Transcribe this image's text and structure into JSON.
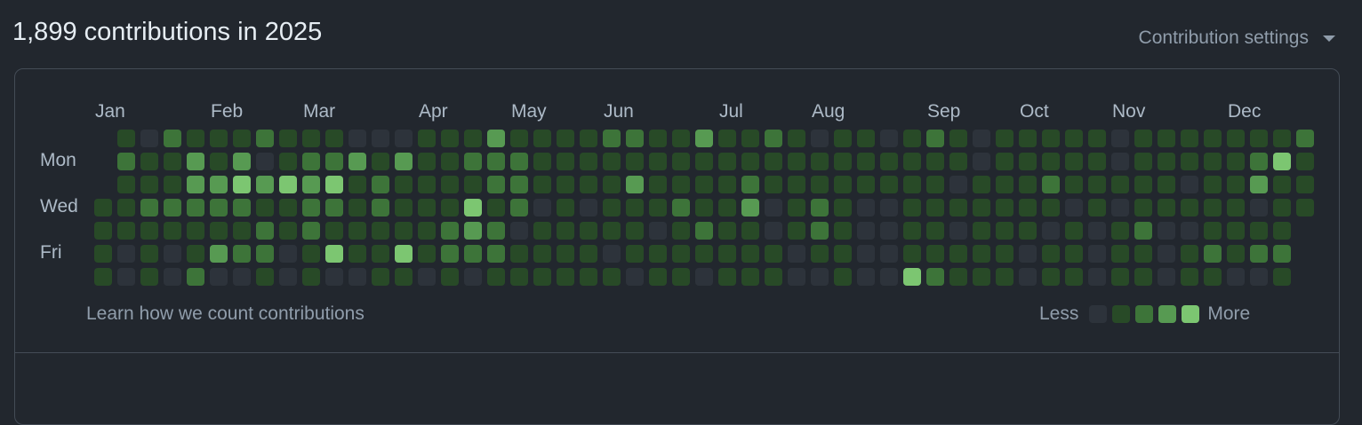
{
  "header": {
    "title": "1,899 contributions in 2025",
    "settings_label": "Contribution settings",
    "settings_icon": "caret-down-icon"
  },
  "footer": {
    "learn_link": "Learn how we count contributions",
    "legend_less": "Less",
    "legend_more": "More"
  },
  "colors": {
    "background": "#22272e",
    "levels": [
      "#2d333b",
      "#284a27",
      "#3d7439",
      "#579a52",
      "#7cc671"
    ]
  },
  "chart_data": {
    "type": "heatmap",
    "year": 2025,
    "months": [
      {
        "label": "Jan",
        "week": 0
      },
      {
        "label": "Feb",
        "week": 5
      },
      {
        "label": "Mar",
        "week": 9
      },
      {
        "label": "Apr",
        "week": 14
      },
      {
        "label": "May",
        "week": 18
      },
      {
        "label": "Jun",
        "week": 22
      },
      {
        "label": "Jul",
        "week": 27
      },
      {
        "label": "Aug",
        "week": 31
      },
      {
        "label": "Sep",
        "week": 36
      },
      {
        "label": "Oct",
        "week": 40
      },
      {
        "label": "Nov",
        "week": 44
      },
      {
        "label": "Dec",
        "week": 49
      }
    ],
    "day_labels": [
      {
        "label": "Mon",
        "row": 1
      },
      {
        "label": "Wed",
        "row": 3
      },
      {
        "label": "Fri",
        "row": 5
      }
    ],
    "levels_by_weekday": [
      [
        null,
        1,
        0,
        2,
        1,
        1,
        1,
        2,
        1,
        1,
        1,
        0,
        0,
        0,
        1,
        1,
        1,
        3,
        1,
        1,
        1,
        1,
        2,
        2,
        1,
        1,
        3,
        1,
        1,
        2,
        1,
        0,
        1,
        1,
        0,
        1,
        2,
        1,
        0,
        1,
        1,
        1,
        1,
        1,
        0,
        1,
        1,
        1,
        1,
        1,
        1,
        1,
        2
      ],
      [
        null,
        2,
        1,
        1,
        3,
        1,
        3,
        0,
        1,
        2,
        2,
        3,
        1,
        3,
        1,
        1,
        2,
        2,
        2,
        1,
        1,
        1,
        1,
        1,
        1,
        1,
        1,
        1,
        1,
        1,
        1,
        1,
        1,
        1,
        1,
        1,
        1,
        1,
        0,
        1,
        1,
        1,
        1,
        1,
        0,
        1,
        1,
        1,
        1,
        1,
        2,
        4,
        1
      ],
      [
        null,
        1,
        1,
        1,
        3,
        3,
        4,
        3,
        4,
        3,
        4,
        1,
        2,
        1,
        1,
        1,
        1,
        2,
        2,
        1,
        1,
        1,
        1,
        3,
        1,
        1,
        1,
        1,
        2,
        1,
        1,
        1,
        1,
        1,
        1,
        1,
        1,
        0,
        1,
        1,
        1,
        2,
        1,
        1,
        1,
        1,
        1,
        0,
        1,
        1,
        3,
        1,
        1
      ],
      [
        1,
        1,
        2,
        2,
        2,
        2,
        2,
        1,
        1,
        2,
        2,
        1,
        2,
        1,
        1,
        1,
        4,
        1,
        2,
        0,
        1,
        0,
        1,
        1,
        1,
        2,
        1,
        1,
        3,
        0,
        1,
        2,
        1,
        0,
        0,
        1,
        1,
        1,
        1,
        1,
        1,
        1,
        0,
        1,
        0,
        1,
        1,
        1,
        1,
        1,
        0,
        1,
        1
      ],
      [
        1,
        1,
        1,
        1,
        1,
        1,
        1,
        2,
        1,
        2,
        1,
        1,
        1,
        1,
        1,
        2,
        3,
        2,
        0,
        1,
        1,
        1,
        1,
        1,
        0,
        1,
        2,
        1,
        1,
        0,
        1,
        2,
        1,
        0,
        0,
        1,
        1,
        0,
        1,
        1,
        1,
        0,
        1,
        0,
        1,
        2,
        0,
        0,
        1,
        1,
        1,
        1,
        null
      ],
      [
        1,
        0,
        1,
        0,
        1,
        3,
        2,
        2,
        0,
        1,
        4,
        1,
        1,
        4,
        1,
        2,
        2,
        2,
        1,
        1,
        1,
        1,
        0,
        1,
        1,
        1,
        1,
        1,
        1,
        1,
        0,
        1,
        1,
        0,
        0,
        1,
        1,
        1,
        1,
        1,
        0,
        1,
        1,
        0,
        1,
        1,
        0,
        1,
        2,
        1,
        2,
        2,
        null
      ],
      [
        1,
        0,
        1,
        0,
        2,
        0,
        0,
        1,
        0,
        1,
        0,
        0,
        1,
        1,
        0,
        1,
        0,
        1,
        1,
        1,
        1,
        1,
        1,
        0,
        1,
        1,
        0,
        1,
        1,
        1,
        0,
        0,
        1,
        0,
        0,
        4,
        2,
        1,
        1,
        1,
        0,
        1,
        1,
        0,
        1,
        1,
        0,
        1,
        1,
        0,
        0,
        1,
        null
      ]
    ]
  }
}
